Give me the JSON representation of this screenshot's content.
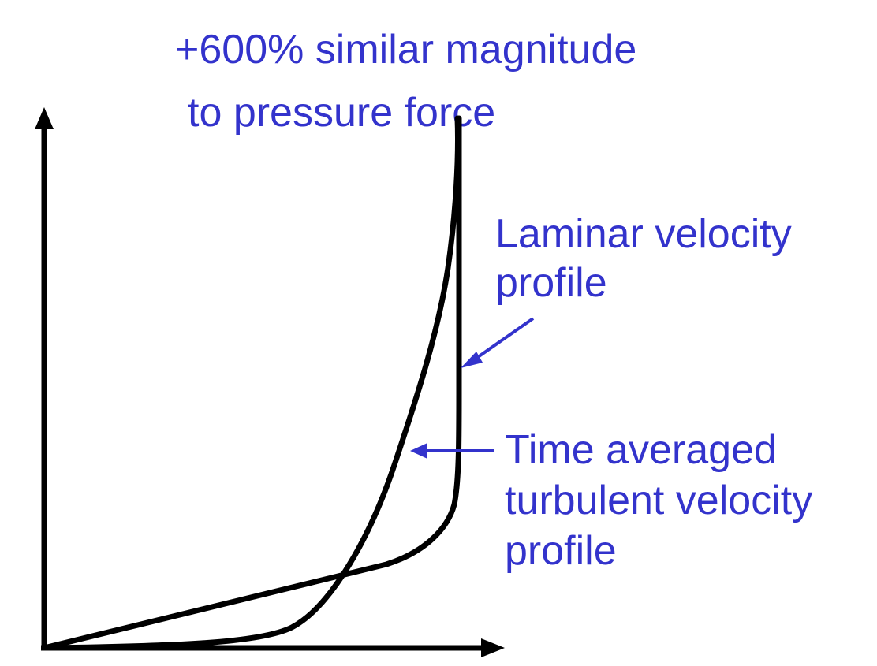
{
  "title": {
    "line1": "+600% similar magnitude",
    "line2": "to pressure force"
  },
  "labels": {
    "laminar": [
      "Laminar velocity",
      "profile"
    ],
    "turbulent": [
      "Time averaged",
      "turbulent velocity",
      "profile"
    ]
  },
  "colors": {
    "text": "#3333cc",
    "curves": "#000000",
    "arrows": "#3333cc"
  }
}
